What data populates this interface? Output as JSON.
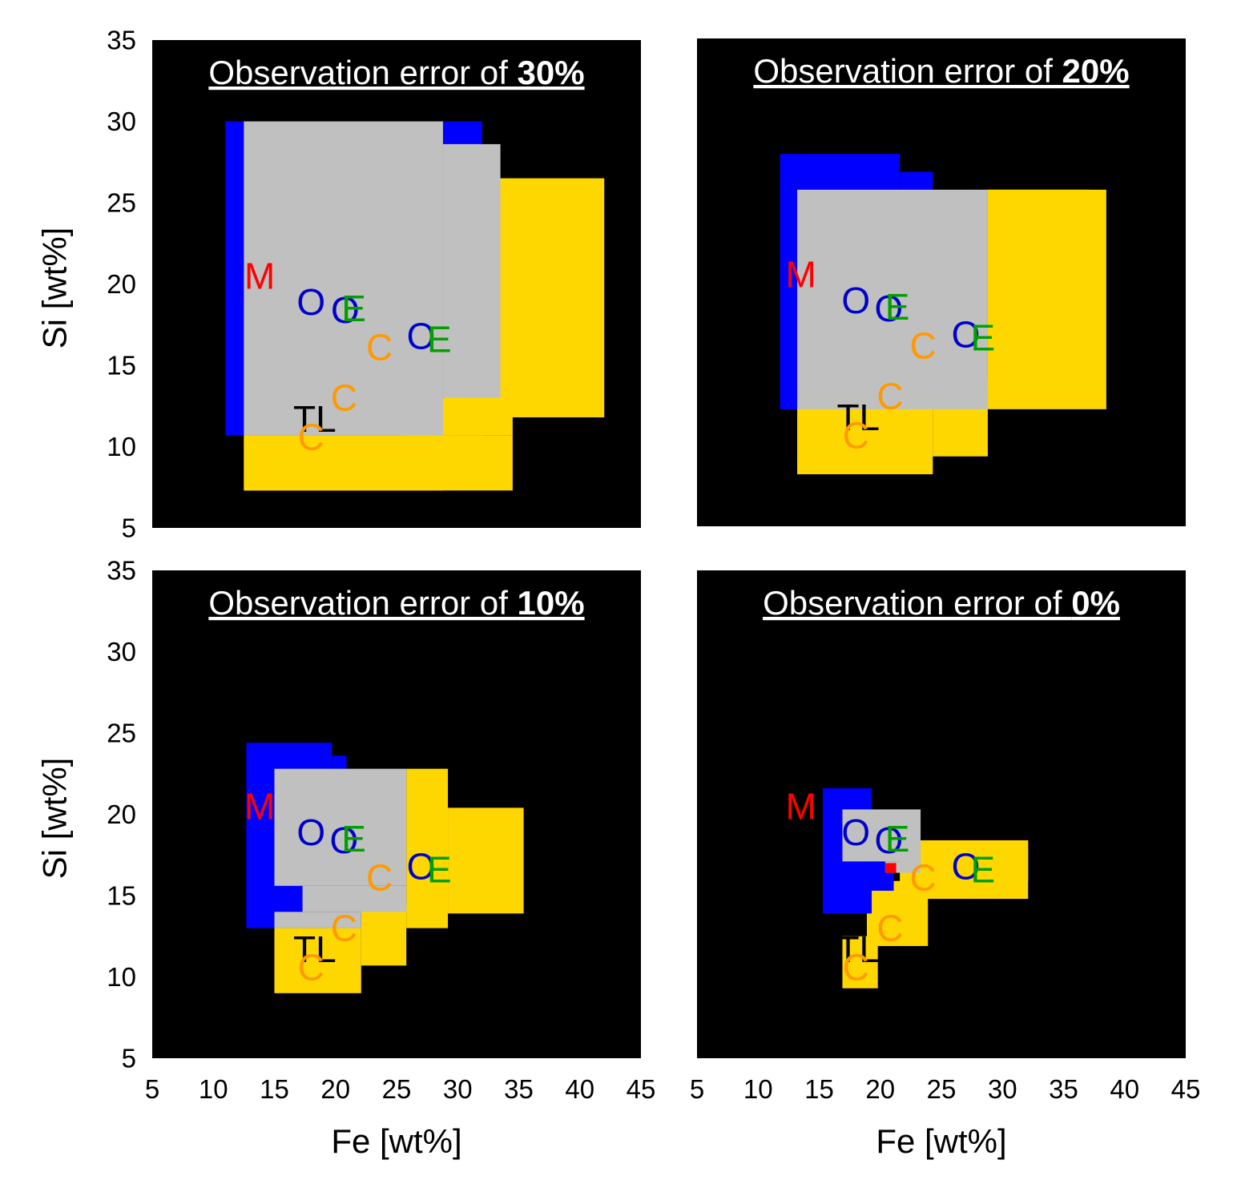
{
  "figure": {
    "panels": [
      {
        "title_prefix": "Observation error of ",
        "title_value": "30%",
        "y_axis_label": "Si [wt%]",
        "x_axis_label": "",
        "y_ticks": [
          "35",
          "30",
          "25",
          "20",
          "15",
          "10",
          "5"
        ],
        "x_ticks": []
      },
      {
        "title_prefix": "Observation error of ",
        "title_value": "20%",
        "y_axis_label": "",
        "x_axis_label": "",
        "y_ticks": [],
        "x_ticks": []
      },
      {
        "title_prefix": "Observation error of ",
        "title_value": "10%",
        "y_axis_label": "Si [wt%]",
        "x_axis_label": "Fe [wt%]",
        "y_ticks": [
          "35",
          "30",
          "25",
          "20",
          "15",
          "10",
          "5"
        ],
        "x_ticks": [
          "5",
          "10",
          "15",
          "20",
          "25",
          "30",
          "35",
          "40",
          "45"
        ]
      },
      {
        "title_prefix": "Observation error of ",
        "title_value": "0%",
        "y_axis_label": "",
        "x_axis_label": "Fe [wt%]",
        "y_ticks": [],
        "x_ticks": [
          "5",
          "10",
          "15",
          "20",
          "25",
          "30",
          "35",
          "40",
          "45"
        ]
      }
    ]
  },
  "chart_data": [
    {
      "type": "heatmap",
      "title": "Observation error of 30%",
      "xlabel": "",
      "ylabel": "Si [wt%]",
      "xlim": [
        5,
        45
      ],
      "ylim": [
        5,
        35
      ],
      "background": "#000000",
      "region_colors": {
        "blue": "#0000ff",
        "gray": "#c0c0c0",
        "yellow": "#ffd700",
        "red": "#ff0000"
      },
      "regions": [
        {
          "color": "yellow",
          "rects": [
            [
              12.5,
              34.5,
              7.3,
              10.7
            ],
            [
              25.8,
              34.5,
              10.7,
              13.0
            ],
            [
              29,
              42,
              11.8,
              26.5
            ],
            [
              12.5,
              28.8,
              7.3,
              9.7
            ],
            [
              12.5,
              32.0,
              9.7,
              10.7
            ]
          ]
        },
        {
          "color": "blue",
          "rects": [
            [
              11,
              12.5,
              10.7,
              30.0
            ],
            [
              28.8,
              32,
              28.6,
              30.0
            ]
          ]
        },
        {
          "color": "gray",
          "rects": [
            [
              12.5,
              28.8,
              10.7,
              30.0
            ],
            [
              28.8,
              33.5,
              13.0,
              28.6
            ],
            [
              25.8,
              28.8,
              13.0,
              10.7
            ]
          ]
        }
      ],
      "markers": [
        {
          "label": "M",
          "fe": 13.8,
          "si": 20.5,
          "color": "#ff0000"
        },
        {
          "label": "O",
          "fe": 18.0,
          "si": 18.9,
          "color": "#0000cc"
        },
        {
          "label": "O",
          "fe": 20.8,
          "si": 18.4,
          "color": "#0000cc"
        },
        {
          "label": "E",
          "fe": 21.5,
          "si": 18.5,
          "color": "#00a000"
        },
        {
          "label": "O",
          "fe": 27.0,
          "si": 16.8,
          "color": "#0000cc"
        },
        {
          "label": "E",
          "fe": 28.5,
          "si": 16.6,
          "color": "#00a000"
        },
        {
          "label": "C",
          "fe": 23.6,
          "si": 16.1,
          "color": "#ff9900"
        },
        {
          "label": "C",
          "fe": 20.7,
          "si": 13.0,
          "color": "#ff9900"
        },
        {
          "label": "TL",
          "fe": 18.3,
          "si": 11.7,
          "color": "#000000"
        },
        {
          "label": "C",
          "fe": 18.0,
          "si": 10.6,
          "color": "#ff9900"
        }
      ]
    },
    {
      "type": "heatmap",
      "title": "Observation error of 20%",
      "xlabel": "",
      "ylabel": "",
      "xlim": [
        5,
        45
      ],
      "ylim": [
        5,
        35
      ],
      "background": "#000000",
      "region_colors": {
        "blue": "#0000ff",
        "gray": "#c0c0c0",
        "yellow": "#ffd700",
        "red": "#ff0000"
      },
      "regions": [
        {
          "color": "yellow",
          "rects": [
            [
              13.2,
              24.3,
              8.2,
              13.0
            ],
            [
              24.3,
              28.8,
              9.3,
              13.0
            ],
            [
              28.8,
              38.5,
              12.2,
              25.7
            ],
            [
              30.2,
              37.1,
              23.7,
              25.7
            ],
            [
              28.8,
              30.2,
              23.7,
              25.7
            ]
          ]
        },
        {
          "color": "blue",
          "rects": [
            [
              11.8,
              13.2,
              12.2,
              27.9
            ],
            [
              13.2,
              21.6,
              25.7,
              27.9
            ],
            [
              21.6,
              24.3,
              25.7,
              26.8
            ]
          ]
        },
        {
          "color": "gray",
          "rects": [
            [
              13.2,
              28.8,
              13.0,
              25.7
            ],
            [
              13.2,
              28.8,
              12.2,
              13.0
            ],
            [
              24.3,
              28.8,
              13.0,
              14.0
            ]
          ]
        }
      ],
      "markers": [
        {
          "label": "M",
          "fe": 13.5,
          "si": 20.5,
          "color": "#ff0000"
        },
        {
          "label": "O",
          "fe": 18.0,
          "si": 18.9,
          "color": "#0000cc"
        },
        {
          "label": "O",
          "fe": 20.7,
          "si": 18.4,
          "color": "#0000cc"
        },
        {
          "label": "E",
          "fe": 21.4,
          "si": 18.5,
          "color": "#00a000"
        },
        {
          "label": "O",
          "fe": 27.0,
          "si": 16.8,
          "color": "#0000cc"
        },
        {
          "label": "E",
          "fe": 28.4,
          "si": 16.6,
          "color": "#00a000"
        },
        {
          "label": "C",
          "fe": 23.5,
          "si": 16.1,
          "color": "#ff9900"
        },
        {
          "label": "C",
          "fe": 20.8,
          "si": 13.0,
          "color": "#ff9900"
        },
        {
          "label": "TL",
          "fe": 18.2,
          "si": 11.7,
          "color": "#000000"
        },
        {
          "label": "C",
          "fe": 18.0,
          "si": 10.6,
          "color": "#ff9900"
        }
      ]
    },
    {
      "type": "heatmap",
      "title": "Observation error of 10%",
      "xlabel": "Fe [wt%]",
      "ylabel": "Si [wt%]",
      "xlim": [
        5,
        45
      ],
      "ylim": [
        5,
        35
      ],
      "background": "#000000",
      "region_colors": {
        "blue": "#0000ff",
        "gray": "#c0c0c0",
        "yellow": "#ffd700",
        "red": "#ff0000"
      },
      "regions": [
        {
          "color": "yellow",
          "rects": [
            [
              15,
              22.1,
              9.0,
              13.0
            ],
            [
              22.1,
              25.8,
              10.7,
              14.5
            ],
            [
              25.8,
              29.2,
              13.0,
              22.8
            ],
            [
              29.2,
              35.4,
              13.9,
              20.4
            ],
            [
              15,
              22.1,
              13.0,
              13.1
            ]
          ]
        },
        {
          "color": "blue",
          "rects": [
            [
              12.7,
              15,
              13.0,
              24.4
            ],
            [
              15,
              19.7,
              22.8,
              24.4
            ],
            [
              19.7,
              20.9,
              22.8,
              23.6
            ],
            [
              15,
              17.3,
              14.0,
              15.6
            ]
          ]
        },
        {
          "color": "gray",
          "rects": [
            [
              15,
              25.8,
              15.6,
              22.8
            ],
            [
              17.3,
              25.8,
              14.0,
              15.6
            ],
            [
              15,
              22.1,
              13.0,
              14.0
            ],
            [
              22.1,
              25.8,
              14.5,
              14.0
            ]
          ]
        }
      ],
      "markers": [
        {
          "label": "M",
          "fe": 13.8,
          "si": 20.5,
          "color": "#ff0000"
        },
        {
          "label": "O",
          "fe": 18.0,
          "si": 18.9,
          "color": "#0000cc"
        },
        {
          "label": "O",
          "fe": 20.7,
          "si": 18.4,
          "color": "#0000cc"
        },
        {
          "label": "E",
          "fe": 21.5,
          "si": 18.5,
          "color": "#00a000"
        },
        {
          "label": "O",
          "fe": 27.0,
          "si": 16.8,
          "color": "#0000cc"
        },
        {
          "label": "E",
          "fe": 28.5,
          "si": 16.6,
          "color": "#00a000"
        },
        {
          "label": "C",
          "fe": 23.6,
          "si": 16.1,
          "color": "#ff9900"
        },
        {
          "label": "C",
          "fe": 20.7,
          "si": 13.0,
          "color": "#ff9900"
        },
        {
          "label": "TL",
          "fe": 18.3,
          "si": 11.7,
          "color": "#000000"
        },
        {
          "label": "C",
          "fe": 18.0,
          "si": 10.6,
          "color": "#ff9900"
        }
      ]
    },
    {
      "type": "heatmap",
      "title": "Observation error of 0%",
      "xlabel": "Fe [wt%]",
      "ylabel": "",
      "xlim": [
        5,
        45
      ],
      "ylim": [
        5,
        35
      ],
      "background": "#000000",
      "region_colors": {
        "blue": "#0000ff",
        "gray": "#c0c0c0",
        "yellow": "#ffd700",
        "red": "#ff0000"
      },
      "regions": [
        {
          "color": "yellow",
          "rects": [
            [
              16.9,
              19.8,
              9.3,
              12.5
            ],
            [
              18.9,
              23.9,
              11.9,
              15.9
            ],
            [
              21.6,
              32.1,
              14.8,
              18.4
            ],
            [
              23.9,
              32.1,
              15.9,
              18.4
            ]
          ]
        },
        {
          "color": "blue",
          "rects": [
            [
              15.3,
              19.3,
              13.9,
              21.6
            ],
            [
              16.1,
              21.1,
              15.3,
              20.0
            ]
          ]
        },
        {
          "color": "gray",
          "rects": [
            [
              16.9,
              23.3,
              17.1,
              20.3
            ],
            [
              20.4,
              23.3,
              16.4,
              17.1
            ]
          ]
        },
        {
          "color": "red",
          "rects": [
            [
              20.4,
              21.3,
              16.4,
              17.0
            ]
          ]
        }
      ],
      "markers": [
        {
          "label": "M",
          "fe": 13.5,
          "si": 20.5,
          "color": "#ff0000"
        },
        {
          "label": "O",
          "fe": 18.0,
          "si": 18.9,
          "color": "#0000cc"
        },
        {
          "label": "O",
          "fe": 20.7,
          "si": 18.4,
          "color": "#0000cc"
        },
        {
          "label": "E",
          "fe": 21.4,
          "si": 18.5,
          "color": "#00a000"
        },
        {
          "label": "O",
          "fe": 27.0,
          "si": 16.8,
          "color": "#0000cc"
        },
        {
          "label": "E",
          "fe": 28.4,
          "si": 16.6,
          "color": "#00a000"
        },
        {
          "label": "C",
          "fe": 23.5,
          "si": 16.1,
          "color": "#ff9900"
        },
        {
          "label": "C",
          "fe": 20.8,
          "si": 13.0,
          "color": "#ff9900"
        },
        {
          "label": "TL",
          "fe": 18.2,
          "si": 11.7,
          "color": "#000000"
        },
        {
          "label": "C",
          "fe": 18.0,
          "si": 10.6,
          "color": "#ff9900"
        }
      ]
    }
  ]
}
